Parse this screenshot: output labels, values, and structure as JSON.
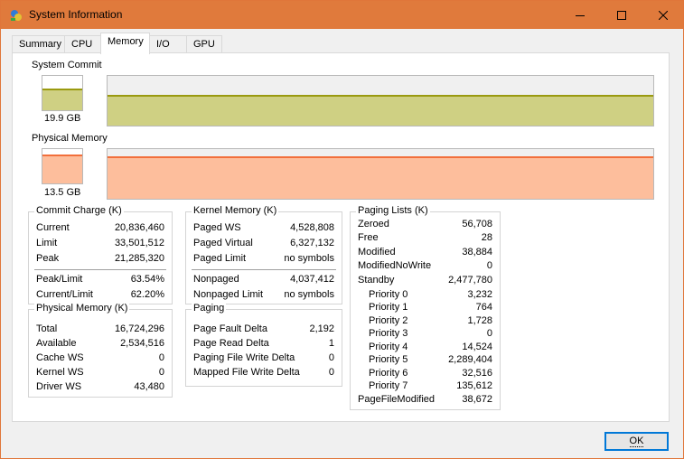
{
  "window": {
    "title": "System Information",
    "app_icon": "sysinfo-icon"
  },
  "title_controls": {
    "minimize": "minimize-icon",
    "maximize": "maximize-icon",
    "close": "close-icon"
  },
  "tabs": [
    {
      "label": "Summary",
      "active": false
    },
    {
      "label": "CPU",
      "active": false
    },
    {
      "label": "Memory",
      "active": true
    },
    {
      "label": "I/O",
      "active": false
    },
    {
      "label": "GPU",
      "active": false
    }
  ],
  "system_commit": {
    "label": "System Commit",
    "value": "19.9 GB",
    "usage_fraction": 0.62,
    "color": "#cfd083",
    "line_color": "#9a9a10"
  },
  "physical_memory": {
    "label": "Physical Memory",
    "value": "13.5 GB",
    "usage_fraction": 0.85,
    "color": "#fdbe9c",
    "line_color": "#f26f3b"
  },
  "commit_charge": {
    "title": "Commit Charge (K)",
    "rows": [
      {
        "k": "Current",
        "v": "20,836,460"
      },
      {
        "k": "Limit",
        "v": "33,501,512"
      },
      {
        "k": "Peak",
        "v": "21,285,320"
      }
    ],
    "rows2": [
      {
        "k": "Peak/Limit",
        "v": "63.54%"
      },
      {
        "k": "Current/Limit",
        "v": "62.20%"
      }
    ]
  },
  "physical_memory_k": {
    "title": "Physical Memory (K)",
    "rows": [
      {
        "k": "Total",
        "v": "16,724,296"
      },
      {
        "k": "Available",
        "v": "2,534,516"
      },
      {
        "k": "Cache WS",
        "v": "0"
      },
      {
        "k": "Kernel WS",
        "v": "0"
      },
      {
        "k": "Driver WS",
        "v": "43,480"
      }
    ]
  },
  "kernel_memory": {
    "title": "Kernel Memory (K)",
    "rows": [
      {
        "k": "Paged WS",
        "v": "4,528,808"
      },
      {
        "k": "Paged Virtual",
        "v": "6,327,132"
      },
      {
        "k": "Paged Limit",
        "v": "no symbols"
      }
    ],
    "rows2": [
      {
        "k": "Nonpaged",
        "v": "4,037,412"
      },
      {
        "k": "Nonpaged Limit",
        "v": "no symbols"
      }
    ]
  },
  "paging": {
    "title": "Paging",
    "rows": [
      {
        "k": "Page Fault Delta",
        "v": "2,192"
      },
      {
        "k": "Page Read Delta",
        "v": "1"
      },
      {
        "k": "Paging File Write Delta",
        "v": "0"
      },
      {
        "k": "Mapped File Write Delta",
        "v": "0"
      }
    ]
  },
  "paging_lists": {
    "title": "Paging Lists (K)",
    "rows": [
      {
        "k": "Zeroed",
        "v": "56,708"
      },
      {
        "k": "Free",
        "v": "28"
      },
      {
        "k": "Modified",
        "v": "38,884"
      },
      {
        "k": "ModifiedNoWrite",
        "v": "0"
      },
      {
        "k": "Standby",
        "v": "2,477,780"
      }
    ],
    "priorities": [
      {
        "k": "Priority 0",
        "v": "3,232"
      },
      {
        "k": "Priority 1",
        "v": "764"
      },
      {
        "k": "Priority 2",
        "v": "1,728"
      },
      {
        "k": "Priority 3",
        "v": "0"
      },
      {
        "k": "Priority 4",
        "v": "14,524"
      },
      {
        "k": "Priority 5",
        "v": "2,289,404"
      },
      {
        "k": "Priority 6",
        "v": "32,516"
      },
      {
        "k": "Priority 7",
        "v": "135,612"
      }
    ],
    "last": {
      "k": "PageFileModified",
      "v": "38,672"
    }
  },
  "ok_label": "OK"
}
